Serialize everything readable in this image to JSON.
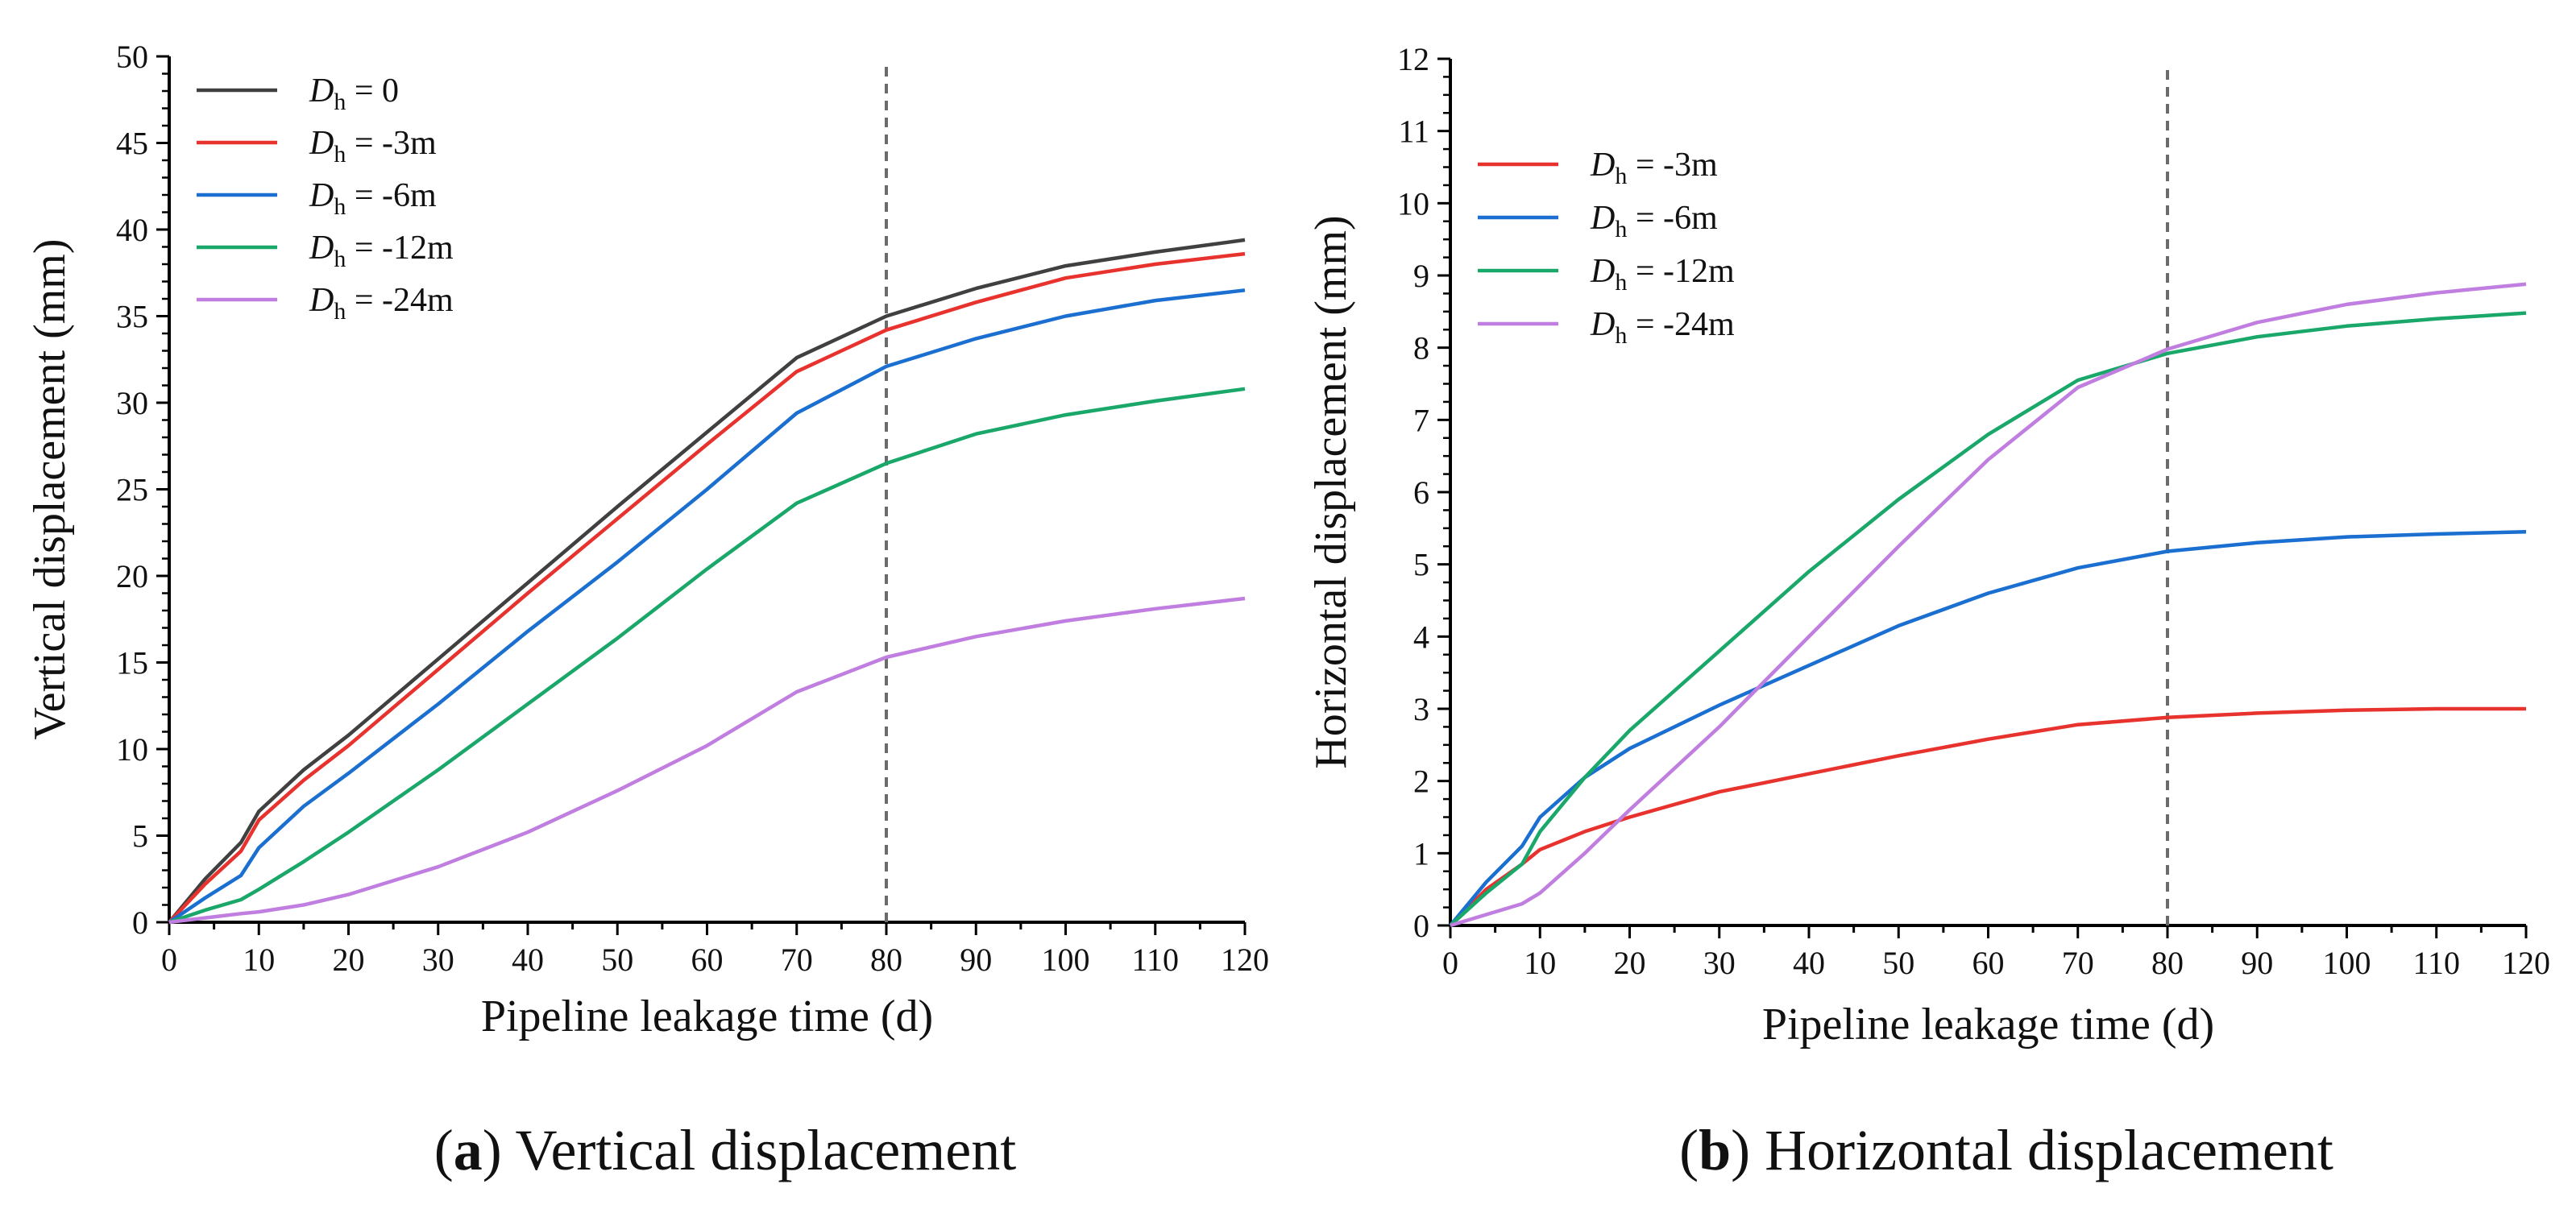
{
  "chart_data": [
    {
      "type": "line",
      "panel_letter": "a",
      "caption": "Vertical displacement",
      "xlabel": "Pipeline leakage time (d)",
      "ylabel": "Vertical displacement (mm)",
      "xlim": [
        0,
        120
      ],
      "ylim": [
        0,
        50
      ],
      "xticks": [
        0,
        10,
        20,
        30,
        40,
        50,
        60,
        70,
        80,
        90,
        100,
        110,
        120
      ],
      "yticks": [
        0,
        5,
        10,
        15,
        20,
        25,
        30,
        35,
        40,
        45,
        50
      ],
      "vline_x": 80,
      "legend_position": "top-left",
      "x": [
        0,
        4,
        8,
        10,
        15,
        20,
        30,
        40,
        50,
        60,
        70,
        80,
        90,
        100,
        110,
        120
      ],
      "series": [
        {
          "name_main": "D",
          "name_sub": "h",
          "name_rest": " = 0",
          "color": "#404040",
          "values": [
            0,
            2.5,
            4.6,
            6.4,
            8.8,
            10.8,
            15.2,
            19.6,
            24.0,
            28.3,
            32.6,
            35.0,
            36.6,
            37.9,
            38.7,
            39.4
          ]
        },
        {
          "name_main": "D",
          "name_sub": "h",
          "name_rest": " = -3m",
          "color": "#e8322e",
          "values": [
            0,
            2.2,
            4.1,
            5.9,
            8.2,
            10.2,
            14.6,
            19.0,
            23.3,
            27.6,
            31.8,
            34.2,
            35.8,
            37.2,
            38.0,
            38.6
          ]
        },
        {
          "name_main": "D",
          "name_sub": "h",
          "name_rest": " = -6m",
          "color": "#1a6fd0",
          "values": [
            0,
            1.4,
            2.7,
            4.3,
            6.7,
            8.6,
            12.6,
            16.8,
            20.8,
            25.0,
            29.4,
            32.1,
            33.7,
            35.0,
            35.9,
            36.5
          ]
        },
        {
          "name_main": "D",
          "name_sub": "h",
          "name_rest": " = -12m",
          "color": "#1aa86a",
          "values": [
            0,
            0.7,
            1.3,
            1.9,
            3.5,
            5.2,
            8.8,
            12.6,
            16.4,
            20.4,
            24.2,
            26.5,
            28.2,
            29.3,
            30.1,
            30.8
          ]
        },
        {
          "name_main": "D",
          "name_sub": "h",
          "name_rest": " = -24m",
          "color": "#c07ee0",
          "values": [
            0,
            0.25,
            0.5,
            0.6,
            1.0,
            1.6,
            3.2,
            5.2,
            7.6,
            10.2,
            13.3,
            15.3,
            16.5,
            17.4,
            18.1,
            18.7
          ]
        }
      ]
    },
    {
      "type": "line",
      "panel_letter": "b",
      "caption": "Horizontal displacement",
      "xlabel": "Pipeline leakage time (d)",
      "ylabel": "Horizontal displacement (mm)",
      "xlim": [
        0,
        120
      ],
      "ylim": [
        0,
        12
      ],
      "xticks": [
        0,
        10,
        20,
        30,
        40,
        50,
        60,
        70,
        80,
        90,
        100,
        110,
        120
      ],
      "yticks": [
        0,
        1,
        2,
        3,
        4,
        5,
        6,
        7,
        8,
        9,
        10,
        11,
        12
      ],
      "vline_x": 80,
      "legend_position": "top-left",
      "x": [
        0,
        4,
        8,
        10,
        15,
        20,
        30,
        40,
        50,
        60,
        70,
        80,
        90,
        100,
        110,
        120
      ],
      "series": [
        {
          "name_main": "D",
          "name_sub": "h",
          "name_rest": " = -3m",
          "color": "#e8322e",
          "values": [
            0,
            0.5,
            0.85,
            1.05,
            1.3,
            1.5,
            1.85,
            2.1,
            2.35,
            2.58,
            2.78,
            2.88,
            2.94,
            2.98,
            3.0,
            3.0
          ]
        },
        {
          "name_main": "D",
          "name_sub": "h",
          "name_rest": " = -6m",
          "color": "#1a6fd0",
          "values": [
            0,
            0.6,
            1.1,
            1.5,
            2.05,
            2.45,
            3.05,
            3.6,
            4.15,
            4.6,
            4.95,
            5.18,
            5.3,
            5.38,
            5.42,
            5.45
          ]
        },
        {
          "name_main": "D",
          "name_sub": "h",
          "name_rest": " = -12m",
          "color": "#1aa86a",
          "values": [
            0,
            0.45,
            0.85,
            1.3,
            2.05,
            2.7,
            3.8,
            4.9,
            5.9,
            6.8,
            7.55,
            7.92,
            8.15,
            8.3,
            8.4,
            8.48
          ]
        },
        {
          "name_main": "D",
          "name_sub": "h",
          "name_rest": " = -24m",
          "color": "#c07ee0",
          "values": [
            0,
            0.15,
            0.3,
            0.45,
            1.0,
            1.6,
            2.75,
            4.0,
            5.25,
            6.45,
            7.45,
            7.98,
            8.35,
            8.6,
            8.76,
            8.88
          ]
        }
      ]
    }
  ]
}
